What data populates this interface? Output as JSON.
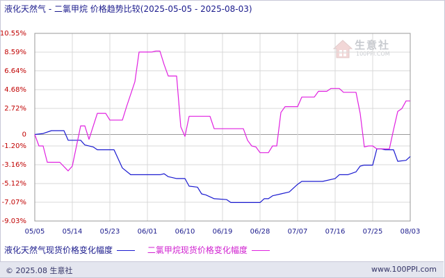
{
  "title": {
    "main": "液化天然气 - 二氯甲烷 价格趋势比较",
    "range": "(2025-05-05 - 2025-08-03)"
  },
  "watermark": {
    "brand": "生意社",
    "url": "100PPI.COM"
  },
  "footer": {
    "left": "© 2025.08 生意社",
    "right": "www.100PPI.com"
  },
  "colors": {
    "series1": "#1a1ad0",
    "series2": "#e020e0",
    "grid": "#d8d8d8",
    "axis": "#999999",
    "tick_y": "#c00000",
    "tick_x": "#1a1a8c"
  },
  "chart_data": {
    "type": "line",
    "title": "液化天然气 - 二氯甲烷 价格趋势比较",
    "x_ticks": [
      "05/05",
      "05/14",
      "05/23",
      "06/01",
      "06/10",
      "06/19",
      "06/28",
      "07/07",
      "07/16",
      "07/25",
      "08/03"
    ],
    "y_ticks": [
      "10.55%",
      "8.59%",
      "6.64%",
      "4.68%",
      "2.72%",
      "0",
      "-1.20%",
      "-3.16%",
      "-5.12%",
      "-7.07%",
      "-9.03%"
    ],
    "y_tick_values": [
      10.55,
      8.59,
      6.64,
      4.68,
      2.72,
      0,
      -1.2,
      -3.16,
      -5.12,
      -7.07,
      -9.03
    ],
    "ylim": [
      -9.03,
      10.55
    ],
    "xlim_days": [
      0,
      90
    ],
    "grid": true,
    "legend_placement": "bottom",
    "series": [
      {
        "name": "液化天然气现货价格变化幅度",
        "color": "#1a1ad0",
        "points": [
          [
            0,
            0
          ],
          [
            2,
            0.1
          ],
          [
            4,
            0.4
          ],
          [
            7,
            0.4
          ],
          [
            8,
            -0.6
          ],
          [
            11,
            -0.6
          ],
          [
            12,
            -1.1
          ],
          [
            14,
            -1.3
          ],
          [
            15,
            -1.6
          ],
          [
            19,
            -1.6
          ],
          [
            21,
            -3.5
          ],
          [
            23,
            -4.2
          ],
          [
            30,
            -4.2
          ],
          [
            31,
            -4.1
          ],
          [
            32,
            -4.4
          ],
          [
            34,
            -4.6
          ],
          [
            36,
            -4.6
          ],
          [
            37,
            -5.4
          ],
          [
            39,
            -5.5
          ],
          [
            40,
            -6.2
          ],
          [
            41,
            -6.3
          ],
          [
            43,
            -6.7
          ],
          [
            46,
            -6.8
          ],
          [
            47,
            -7.1
          ],
          [
            54,
            -7.1
          ],
          [
            55,
            -6.7
          ],
          [
            56,
            -6.7
          ],
          [
            57,
            -6.4
          ],
          [
            59,
            -6.2
          ],
          [
            61,
            -6.0
          ],
          [
            63,
            -5.2
          ],
          [
            64,
            -4.9
          ],
          [
            67,
            -4.9
          ],
          [
            69,
            -4.9
          ],
          [
            72,
            -4.6
          ],
          [
            73,
            -4.2
          ],
          [
            75,
            -4.2
          ],
          [
            77,
            -3.9
          ],
          [
            78,
            -3.3
          ],
          [
            79,
            -3.2
          ],
          [
            81,
            -3.2
          ],
          [
            82,
            -1.5
          ],
          [
            83,
            -1.5
          ],
          [
            84,
            -1.6
          ],
          [
            86,
            -1.6
          ],
          [
            87,
            -2.8
          ],
          [
            89,
            -2.7
          ],
          [
            90,
            -2.3
          ]
        ]
      },
      {
        "name": "二氯甲烷现货价格变化幅度",
        "color": "#e020e0",
        "points": [
          [
            0,
            0
          ],
          [
            1,
            -1.2
          ],
          [
            2,
            -1.2
          ],
          [
            3,
            -2.9
          ],
          [
            6,
            -2.9
          ],
          [
            8,
            -3.8
          ],
          [
            9,
            -3.3
          ],
          [
            11,
            0.9
          ],
          [
            12,
            0.9
          ],
          [
            13,
            -0.5
          ],
          [
            15,
            2.2
          ],
          [
            17,
            2.2
          ],
          [
            18,
            1.5
          ],
          [
            21,
            1.5
          ],
          [
            22,
            2.9
          ],
          [
            24,
            5.5
          ],
          [
            25,
            8.6
          ],
          [
            28,
            8.6
          ],
          [
            29,
            8.7
          ],
          [
            30,
            8.7
          ],
          [
            31,
            7.3
          ],
          [
            32,
            6.1
          ],
          [
            34,
            6.1
          ],
          [
            35,
            0.8
          ],
          [
            36,
            -0.2
          ],
          [
            37,
            1.9
          ],
          [
            42,
            1.9
          ],
          [
            43,
            0.6
          ],
          [
            50,
            0.6
          ],
          [
            51,
            -0.6
          ],
          [
            52,
            -1.2
          ],
          [
            53,
            -1.3
          ],
          [
            54,
            -1.9
          ],
          [
            56,
            -1.9
          ],
          [
            57,
            -1.2
          ],
          [
            58,
            -1.2
          ],
          [
            59,
            2.3
          ],
          [
            60,
            2.9
          ],
          [
            63,
            2.9
          ],
          [
            64,
            3.9
          ],
          [
            67,
            3.9
          ],
          [
            68,
            4.5
          ],
          [
            70,
            4.5
          ],
          [
            71,
            4.8
          ],
          [
            73,
            4.8
          ],
          [
            74,
            4.4
          ],
          [
            77,
            4.4
          ],
          [
            78,
            2.2
          ],
          [
            79,
            -1.3
          ],
          [
            80,
            -1.2
          ],
          [
            81,
            -1.2
          ],
          [
            82,
            -1.5
          ],
          [
            85,
            -1.5
          ],
          [
            86,
            0.5
          ],
          [
            87,
            2.4
          ],
          [
            88,
            2.7
          ],
          [
            89,
            3.5
          ],
          [
            90,
            3.5
          ]
        ]
      }
    ]
  }
}
